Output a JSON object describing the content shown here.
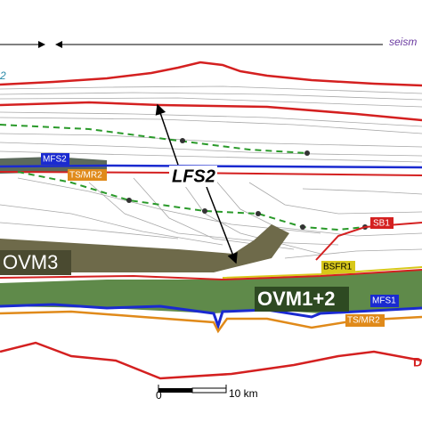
{
  "header": {
    "seismic_label": "seism",
    "left_label": "2"
  },
  "annotations": {
    "lfs2": "LFS2",
    "ovm3": "OVM3",
    "ovm12": "OVM1+2",
    "right_cut": "D"
  },
  "horizon_tags": [
    {
      "text": "MFS2"
    },
    {
      "text": "TS/MR2"
    },
    {
      "text": "SB1"
    },
    {
      "text": "BSFR1"
    },
    {
      "text": "MFS1"
    },
    {
      "text": "TS/MR2"
    }
  ],
  "scale_bar": {
    "zero": "0",
    "length": "10 km"
  }
}
